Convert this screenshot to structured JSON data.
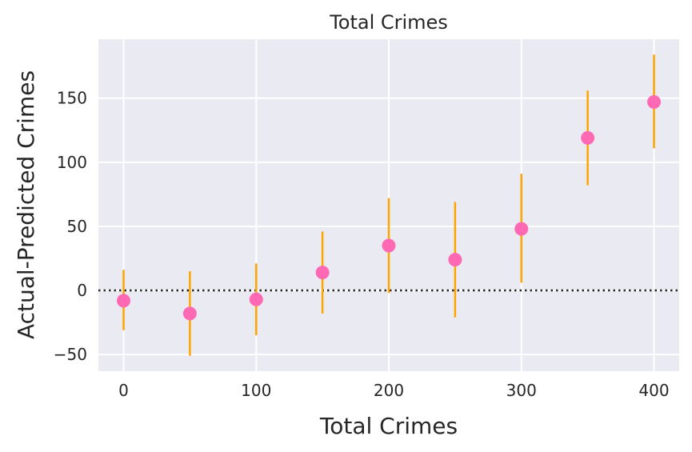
{
  "chart_data": {
    "type": "scatter",
    "title": "Total Crimes",
    "xlabel": "Total Crimes",
    "ylabel": "Actual-Predicted Crimes",
    "xlim": [
      -19,
      419
    ],
    "ylim": [
      -63,
      196
    ],
    "grid": true,
    "x_ticks": [
      0,
      100,
      200,
      300,
      400
    ],
    "y_ticks": [
      -50,
      0,
      50,
      100,
      150
    ],
    "y_tick_labels": [
      "−50",
      "0",
      "50",
      "100",
      "150"
    ],
    "reference_line": {
      "y": 0,
      "style": "dotted",
      "color": "#262626"
    },
    "colors": {
      "point": "#ff69b4",
      "errorbar": "#ffa500",
      "background": "#eaeaf2",
      "grid": "#ffffff"
    },
    "points": [
      {
        "x": 0,
        "y": -8,
        "lo": -31,
        "hi": 16
      },
      {
        "x": 50,
        "y": -18,
        "lo": -51,
        "hi": 15
      },
      {
        "x": 100,
        "y": -7,
        "lo": -35,
        "hi": 21
      },
      {
        "x": 150,
        "y": 14,
        "lo": -18,
        "hi": 46
      },
      {
        "x": 200,
        "y": 35,
        "lo": -2,
        "hi": 72
      },
      {
        "x": 250,
        "y": 24,
        "lo": -21,
        "hi": 69
      },
      {
        "x": 300,
        "y": 48,
        "lo": 6,
        "hi": 91
      },
      {
        "x": 350,
        "y": 119,
        "lo": 82,
        "hi": 156
      },
      {
        "x": 400,
        "y": 147,
        "lo": 111,
        "hi": 184
      }
    ]
  }
}
